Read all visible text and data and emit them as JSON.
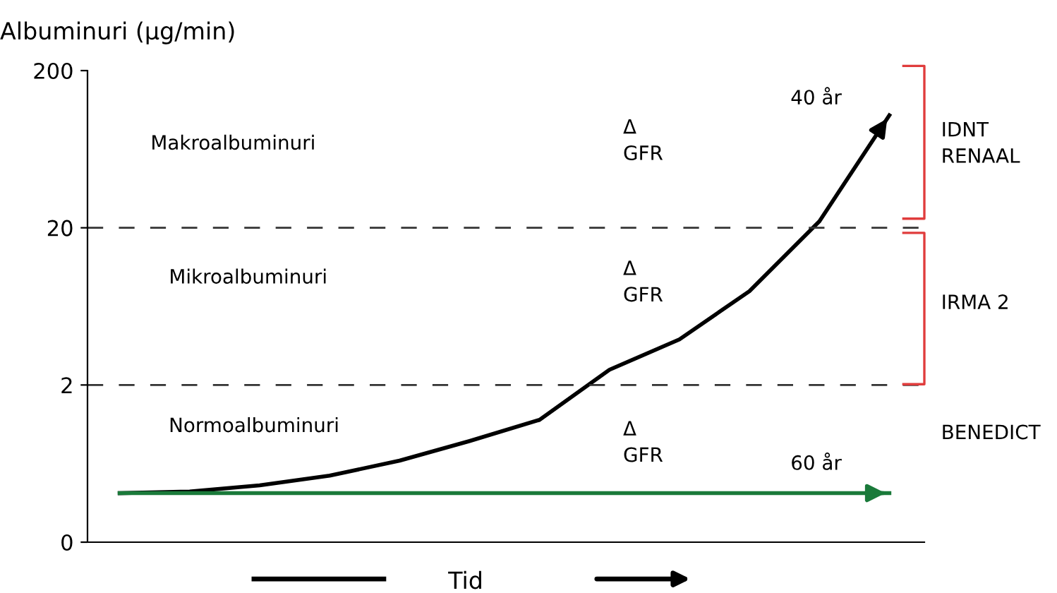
{
  "chart_data": {
    "type": "line",
    "ylabel": "Albuminuri (μg/min)",
    "xlabel": "Tid",
    "log": "y",
    "ylim": [
      0.2,
      200
    ],
    "yticks": [
      {
        "value": 0.2,
        "label": "0"
      },
      2,
      20,
      200
    ],
    "categories": [
      null,
      null,
      null,
      null,
      null,
      null,
      null,
      null,
      null,
      null,
      null,
      null
    ],
    "series": [
      {
        "color": "#000000",
        "values": [
          0.41,
          0.42,
          0.46,
          0.53,
          0.66,
          0.88,
          1.2,
          2.5,
          3.9,
          7.9,
          22,
          104
        ]
      },
      {
        "color": "#1a7a3a",
        "values": [
          0.41,
          null,
          null,
          null,
          null,
          null,
          null,
          null,
          null,
          null,
          null,
          0.41
        ]
      }
    ],
    "ref_lines": [
      {
        "axis": "y",
        "value": 2,
        "line_style": "dashed",
        "color": "#333333"
      },
      {
        "axis": "y",
        "value": 20,
        "line_style": "dashed",
        "color": "#333333"
      }
    ],
    "annotations": [
      "Makroalbuminuri",
      "Mikroalbuminuri",
      "Normoalbuminuri",
      "Δ\nGFR",
      "Δ\nGFR",
      "Δ\nGFR",
      "40 år",
      "60 år",
      "IDNT\nRENAAL",
      "IRMA 2",
      "BENEDICT"
    ],
    "marker": "none",
    "line_style": "solid",
    "grid": false,
    "legend": false
  }
}
